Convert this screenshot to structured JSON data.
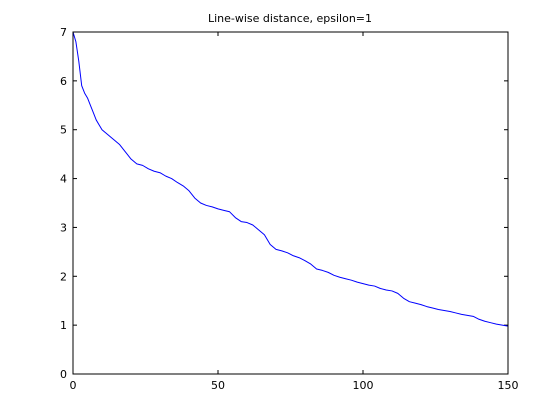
{
  "chart_data": {
    "type": "line",
    "title": "Line-wise distance, epsilon=1",
    "xlabel": "",
    "ylabel": "",
    "xlim": [
      0,
      150
    ],
    "ylim": [
      0,
      7
    ],
    "grid": false,
    "x_ticks": [
      0,
      50,
      100,
      150
    ],
    "x_tick_labels": [
      "0",
      "50",
      "100",
      "150"
    ],
    "y_ticks": [
      0,
      1,
      2,
      3,
      4,
      5,
      6,
      7
    ],
    "y_tick_labels": [
      "0",
      "1",
      "2",
      "3",
      "4",
      "5",
      "6",
      "7"
    ],
    "series": [
      {
        "color": "#0000ff",
        "x": [
          0,
          1,
          2,
          3,
          4,
          5,
          6,
          7,
          8,
          9,
          10,
          12,
          14,
          16,
          18,
          20,
          22,
          24,
          26,
          28,
          30,
          32,
          34,
          36,
          38,
          40,
          42,
          44,
          46,
          48,
          50,
          52,
          54,
          56,
          58,
          60,
          62,
          64,
          66,
          68,
          70,
          72,
          74,
          76,
          78,
          80,
          82,
          84,
          86,
          88,
          90,
          92,
          94,
          96,
          98,
          100,
          102,
          104,
          106,
          108,
          110,
          112,
          114,
          116,
          118,
          120,
          122,
          124,
          126,
          128,
          130,
          132,
          134,
          136,
          138,
          140,
          142,
          144,
          146,
          148,
          150
        ],
        "y": [
          7.0,
          6.8,
          6.4,
          5.9,
          5.75,
          5.65,
          5.5,
          5.35,
          5.2,
          5.1,
          5.0,
          4.9,
          4.8,
          4.7,
          4.55,
          4.4,
          4.3,
          4.27,
          4.2,
          4.15,
          4.12,
          4.05,
          4.0,
          3.92,
          3.85,
          3.75,
          3.6,
          3.5,
          3.45,
          3.42,
          3.38,
          3.35,
          3.32,
          3.2,
          3.12,
          3.1,
          3.05,
          2.95,
          2.85,
          2.65,
          2.55,
          2.52,
          2.48,
          2.42,
          2.38,
          2.32,
          2.25,
          2.15,
          2.12,
          2.08,
          2.02,
          1.98,
          1.95,
          1.92,
          1.88,
          1.85,
          1.82,
          1.8,
          1.75,
          1.72,
          1.7,
          1.65,
          1.55,
          1.48,
          1.45,
          1.42,
          1.38,
          1.35,
          1.32,
          1.3,
          1.28,
          1.25,
          1.22,
          1.2,
          1.18,
          1.12,
          1.08,
          1.05,
          1.02,
          1.0,
          0.98
        ]
      }
    ]
  }
}
